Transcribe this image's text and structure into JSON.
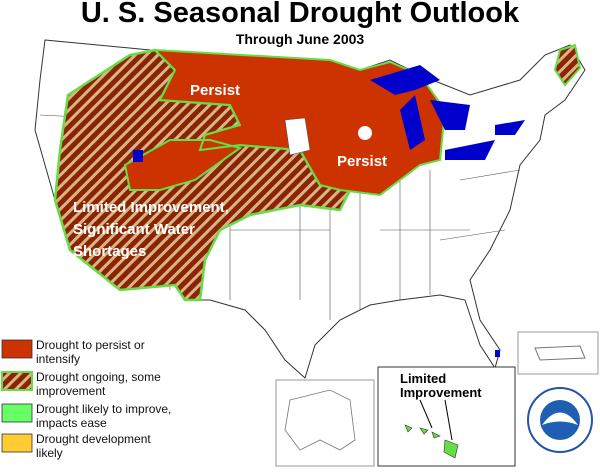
{
  "header": {
    "title": "U. S. Seasonal Drought Outlook",
    "subtitle": "Through June 2003"
  },
  "map_labels": [
    {
      "lines": [
        "Persist"
      ]
    },
    {
      "lines": [
        "Persist"
      ]
    },
    {
      "lines": [
        "Limited Improvement,",
        "Significant Water",
        "Shortages"
      ]
    }
  ],
  "legend": [
    {
      "lines": [
        "Drought to persist or",
        "intensify"
      ],
      "color": "#cc3300"
    },
    {
      "lines": [
        "Drought ongoing, some",
        "improvement"
      ],
      "color": "#a0522d"
    },
    {
      "lines": [
        "Drought likely to improve,",
        "impacts ease"
      ],
      "color": "#66ff66"
    },
    {
      "lines": [
        "Drought development",
        "likely"
      ],
      "color": "#ffcc33"
    }
  ],
  "inset": {
    "lines": [
      "Limited",
      "Improvement"
    ]
  }
}
